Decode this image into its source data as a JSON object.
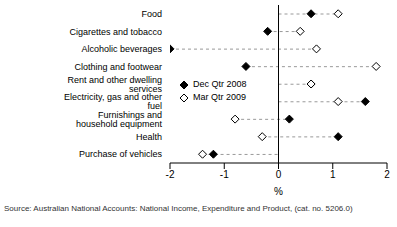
{
  "chart_data": {
    "type": "dot",
    "orientation": "horizontal",
    "categories": [
      "Food",
      "Cigarettes and tobacco",
      "Alcoholic beverages",
      "Clothing and footwear",
      "Rent and other dwelling services",
      "Electricity, gas and other fuel",
      "Furnishings and household equipment",
      "Health",
      "Purchase of vehicles"
    ],
    "series": [
      {
        "name": "Dec Qtr 2008",
        "color": "#000000",
        "marker": "diamond",
        "values": [
          0.6,
          -0.2,
          -2.0,
          -0.6,
          0.6,
          1.6,
          0.2,
          1.1,
          -1.2
        ]
      },
      {
        "name": "Mar Qtr 2009",
        "color": "#000000",
        "marker": "open_diamond",
        "values": [
          1.1,
          0.4,
          0.7,
          1.8,
          0.6,
          1.1,
          -0.8,
          -0.3,
          -1.4
        ]
      }
    ],
    "x_label": "%",
    "xlim": [
      -2,
      2
    ],
    "xticks": [
      -2,
      -1,
      0,
      1,
      2
    ],
    "legend": "left",
    "source": "Source: Australian National Accounts: National Income, Expenditure and Product, (cat. no. 5206.0)"
  }
}
